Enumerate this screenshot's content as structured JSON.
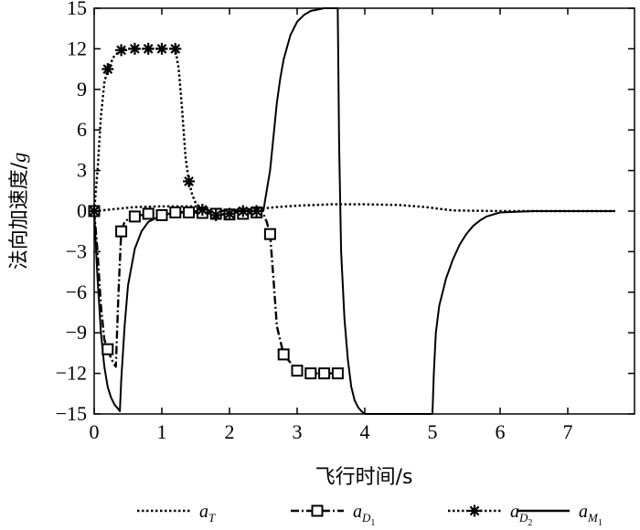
{
  "chart_data": {
    "type": "line",
    "xlabel": "飞行时间/s",
    "ylabel_main": "法向加速度/",
    "ylabel_unit": "g",
    "xlim": [
      0,
      8
    ],
    "ylim": [
      -15,
      15
    ],
    "xticks": [
      0,
      1,
      2,
      3,
      4,
      5,
      6,
      7
    ],
    "yticks": [
      15,
      12,
      9,
      6,
      3,
      0,
      -3,
      -6,
      -9,
      -12,
      -15
    ],
    "grid": false,
    "legend_position": "bottom",
    "series": [
      {
        "key": "aT",
        "legend_main": "a",
        "legend_sub": "T",
        "style": "dotted",
        "marker": "none",
        "x": [
          0,
          0.3,
          0.6,
          1.0,
          1.5,
          1.6,
          1.8,
          2.0,
          2.2,
          2.5,
          2.7,
          3.0,
          3.5,
          4.0,
          4.5,
          4.9,
          5.3,
          6.0,
          7.0,
          7.7
        ],
        "y": [
          0,
          0.15,
          0.3,
          0.35,
          0.35,
          0.1,
          0,
          0.05,
          0.1,
          0.2,
          0.3,
          0.4,
          0.5,
          0.5,
          0.45,
          0.3,
          0.05,
          0,
          0,
          0
        ]
      },
      {
        "key": "aD1",
        "legend_main": "a",
        "legend_sub": "D",
        "legend_subsub": "1",
        "style": "dashdot",
        "marker": "square",
        "x": [
          0,
          0.05,
          0.1,
          0.15,
          0.22,
          0.28,
          0.32,
          0.36,
          0.4,
          0.45,
          0.5,
          0.6,
          0.8,
          1.0,
          1.2,
          1.5,
          1.8,
          2.0,
          2.2,
          2.4,
          2.5,
          2.55,
          2.6,
          2.65,
          2.7,
          2.8,
          3.0,
          3.2,
          3.4,
          3.6
        ],
        "y": [
          0,
          -3,
          -7,
          -9.5,
          -10.5,
          -11.2,
          -11.5,
          -6,
          -1.5,
          -0.8,
          -0.6,
          -0.4,
          -0.2,
          -0.3,
          -0.1,
          -0.1,
          -0.2,
          -0.25,
          -0.2,
          -0.1,
          -0.2,
          -0.8,
          -1.7,
          -5,
          -8.5,
          -10.6,
          -11.8,
          -12,
          -12,
          -12
        ]
      },
      {
        "key": "aD2",
        "legend_main": "a",
        "legend_sub": "D",
        "legend_subsub": "2",
        "style": "dotted",
        "marker": "asterisk",
        "x": [
          0,
          0.05,
          0.1,
          0.15,
          0.2,
          0.3,
          0.4,
          0.5,
          0.6,
          0.8,
          1.0,
          1.2,
          1.25,
          1.3,
          1.35,
          1.4,
          1.45,
          1.5,
          1.6,
          1.7,
          1.8,
          2.0,
          2.2,
          2.4
        ],
        "y": [
          0,
          3,
          7,
          9.5,
          10.5,
          11.5,
          11.9,
          12,
          12,
          12,
          12,
          12,
          10.5,
          7.5,
          4,
          2.2,
          1.2,
          0.6,
          0.1,
          -0.1,
          -0.3,
          -0.2,
          0,
          0
        ]
      },
      {
        "key": "aM1",
        "legend_main": "a",
        "legend_sub": "M",
        "legend_subsub": "1",
        "style": "solid",
        "marker": "none",
        "x": [
          0,
          0.05,
          0.1,
          0.15,
          0.2,
          0.25,
          0.3,
          0.35,
          0.38,
          0.4,
          0.45,
          0.5,
          0.6,
          0.7,
          0.8,
          1.0,
          1.2,
          1.5,
          2.0,
          2.5,
          2.6,
          2.65,
          2.7,
          2.75,
          2.8,
          2.9,
          3.0,
          3.1,
          3.2,
          3.3,
          3.4,
          3.5,
          3.6,
          3.62,
          3.65,
          3.7,
          3.75,
          3.8,
          3.85,
          3.9,
          3.95,
          4.0,
          4.1,
          4.2,
          4.4,
          4.7,
          5.0,
          5.02,
          5.05,
          5.1,
          5.2,
          5.3,
          5.4,
          5.5,
          5.6,
          5.7,
          5.8,
          6.0,
          6.5,
          7.0,
          7.7
        ],
        "y": [
          0,
          -5,
          -9,
          -11.5,
          -13,
          -13.8,
          -14.3,
          -14.6,
          -14.8,
          -12.5,
          -8.5,
          -5.5,
          -2.8,
          -1.5,
          -0.8,
          -0.3,
          -0.1,
          0,
          0,
          0,
          3,
          5.5,
          8,
          9.8,
          11.2,
          13,
          14,
          14.5,
          14.8,
          14.9,
          15,
          15,
          15,
          5,
          -3,
          -8,
          -11,
          -13,
          -14,
          -14.5,
          -14.8,
          -15,
          -15,
          -15,
          -15,
          -15,
          -15,
          -12,
          -9,
          -7,
          -5,
          -3.6,
          -2.5,
          -1.7,
          -1.1,
          -0.7,
          -0.4,
          -0.1,
          0,
          0,
          0
        ]
      }
    ]
  }
}
